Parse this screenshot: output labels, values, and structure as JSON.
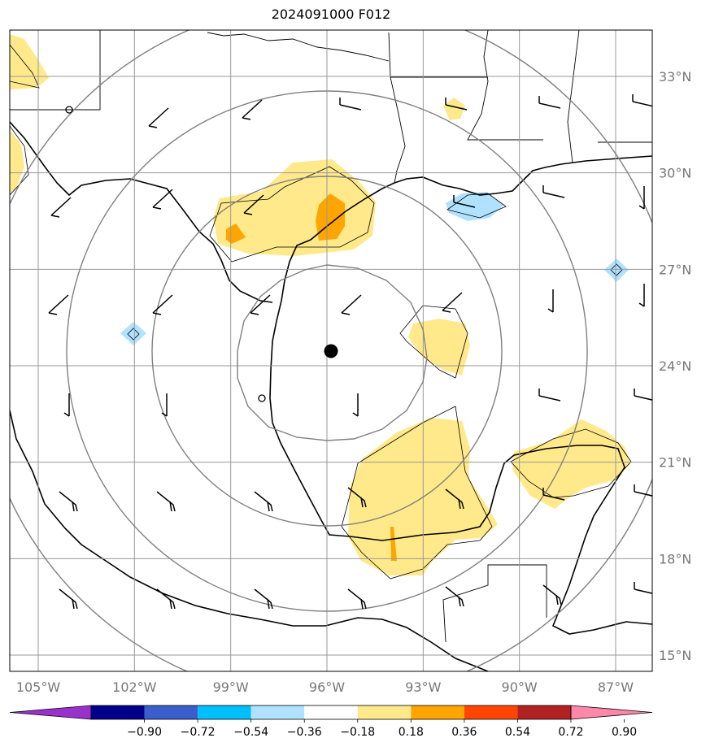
{
  "title": "2024091000 F012",
  "lon_labels": [
    "105°W",
    "102°W",
    "99°W",
    "96°W",
    "93°W",
    "90°W",
    "87°W"
  ],
  "lat_labels": [
    "15°N",
    "18°N",
    "21°N",
    "24°N",
    "27°N",
    "30°N",
    "33°N"
  ],
  "lon_values": [
    -105,
    -102,
    -99,
    -96,
    -93,
    -90,
    -87
  ],
  "lat_values": [
    15,
    18,
    21,
    24,
    27,
    30,
    33
  ],
  "colorbar": {
    "colors": [
      "#9932cc",
      "#00008b",
      "#3a5fcd",
      "#00bfff",
      "#b0e2ff",
      "#ffffff",
      "#ffe98a",
      "#ffa500",
      "#ff4500",
      "#b22222",
      "#ff88aa"
    ],
    "tick_labels": [
      "−0.90",
      "−0.72",
      "−0.54",
      "−0.36",
      "−0.18",
      "0.18",
      "0.36",
      "0.54",
      "0.72",
      "0.90"
    ],
    "tick_values": [
      -0.9,
      -0.72,
      -0.54,
      -0.36,
      -0.18,
      0.18,
      0.36,
      0.54,
      0.72,
      0.9
    ]
  },
  "storm_center": {
    "lon": -95.9,
    "lat": 24.5
  },
  "range_ring_count": 4,
  "colors": {
    "grid": "#999999",
    "rings": "#808080",
    "coast": "#000000",
    "fill_low": "#ffe98a",
    "fill_mid": "#ffa500",
    "fill_neg": "#b0e2ff"
  }
}
